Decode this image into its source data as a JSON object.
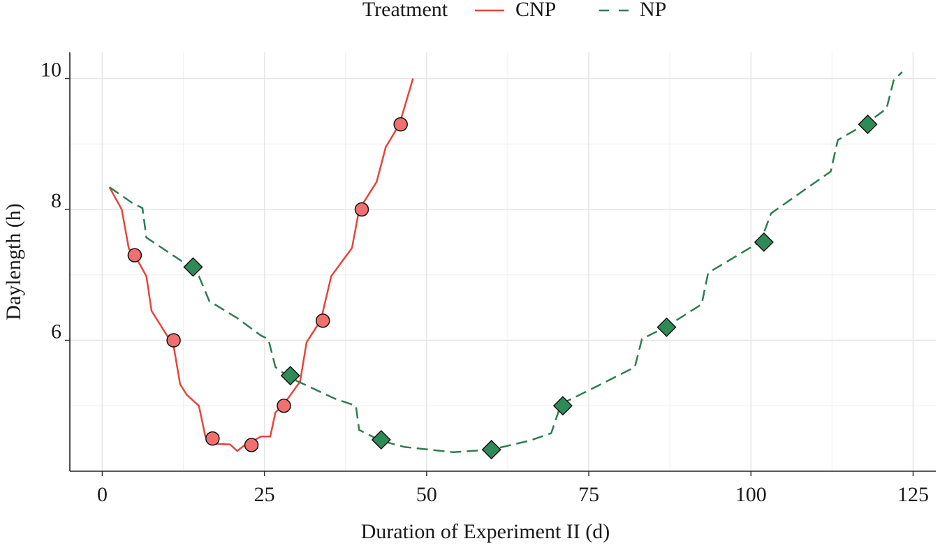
{
  "chart_data": {
    "type": "line",
    "xlabel": "Duration of Experiment II (d)",
    "ylabel": "Daylength (h)",
    "legend_title": "Treatment",
    "legend_position": "top",
    "grid": true,
    "xlim": [
      -5,
      128.5
    ],
    "ylim": [
      4.0,
      10.4
    ],
    "xticks": [
      0,
      25,
      50,
      75,
      100,
      125
    ],
    "yticks": [
      6,
      8,
      10
    ],
    "minor_xticks": [
      12.5,
      37.5,
      62.5,
      87.5,
      112.5
    ],
    "minor_yticks": [
      5,
      7,
      9
    ],
    "series": [
      {
        "name": "CNP",
        "color": "#e8443a",
        "marker_color": "#f07070",
        "marker": "circle",
        "dash": false,
        "x": [
          1.1,
          3,
          4.1,
          5,
          6.8,
          7.6,
          10,
          10.9,
          12,
          13,
          14.9,
          15.9,
          17,
          19.7,
          20.8,
          22,
          24.5,
          25.9,
          26.7,
          27.8,
          30.5,
          31.5,
          33.7,
          35.3,
          38.5,
          39.6,
          42.3,
          43.7,
          45.8,
          47.9
        ],
        "values": [
          8.34,
          8.0,
          7.4,
          7.3,
          6.98,
          6.45,
          6.07,
          5.97,
          5.33,
          5.17,
          5.0,
          4.53,
          4.42,
          4.41,
          4.31,
          4.4,
          4.53,
          4.53,
          4.9,
          5.0,
          5.37,
          5.97,
          6.31,
          6.98,
          7.41,
          8.0,
          8.42,
          8.95,
          9.3,
          10.0
        ],
        "marker_x": [
          5,
          11,
          17,
          23,
          28,
          34,
          40,
          46
        ],
        "marker_values": [
          7.3,
          6.0,
          4.5,
          4.4,
          5.0,
          6.3,
          8.0,
          9.3
        ]
      },
      {
        "name": "NP",
        "color": "#2e7d4f",
        "marker_color": "#2e8b57",
        "marker": "diamond",
        "dash": true,
        "x": [
          1.1,
          4.6,
          6.2,
          6.8,
          13.3,
          14.9,
          16.5,
          20.8,
          24.5,
          25.6,
          26.7,
          28.9,
          35.8,
          39.1,
          39.6,
          42.8,
          46.6,
          54.1,
          60,
          66,
          69.2,
          70.3,
          70.8,
          75.7,
          82.1,
          83.2,
          86.8,
          92.4,
          93.4,
          101.5,
          103.1,
          112.3,
          113.4,
          117.6,
          120.9,
          122,
          123.3
        ],
        "values": [
          8.34,
          8.1,
          8.02,
          7.57,
          7.14,
          6.98,
          6.6,
          6.34,
          6.07,
          6.02,
          5.59,
          5.43,
          5.11,
          5.0,
          4.63,
          4.47,
          4.37,
          4.29,
          4.33,
          4.47,
          4.58,
          4.9,
          5.03,
          5.27,
          5.59,
          6.02,
          6.2,
          6.55,
          7.03,
          7.51,
          7.94,
          8.58,
          9.06,
          9.3,
          9.54,
          9.97,
          10.1
        ],
        "marker_x": [
          14,
          29,
          43,
          60,
          71,
          87,
          102,
          118
        ],
        "marker_values": [
          7.12,
          5.46,
          4.48,
          4.33,
          5.0,
          6.2,
          7.5,
          9.3
        ]
      }
    ]
  }
}
